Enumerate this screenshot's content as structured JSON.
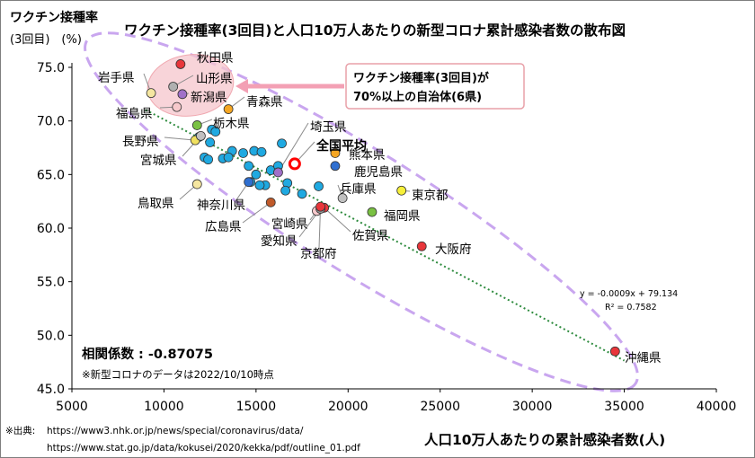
{
  "chart_data": {
    "type": "scatter",
    "title": "ワクチン接種率(3回目)と人口10万人あたりの新型コロナ累計感染者数の散布図",
    "ylabel_line1": "ワクチン接種率",
    "ylabel_line2": "(3回目)　(%)",
    "xlabel": "人口10万人あたりの累計感染者数(人)",
    "xlim": [
      5000,
      40000
    ],
    "ylim": [
      45.0,
      75.0
    ],
    "xticks": [
      "5000",
      "10000",
      "15000",
      "20000",
      "25000",
      "30000",
      "35000",
      "40000"
    ],
    "yticks": [
      "45.0",
      "50.0",
      "55.0",
      "60.0",
      "65.0",
      "70.0",
      "75.0"
    ],
    "trendline": {
      "equation": "y = -0.0009x + 79.134",
      "r2": "R² = 0.7582",
      "slope": -0.0009,
      "intercept": 79.134
    },
    "correlation": "相関係数 : -0.87075",
    "data_note": "※新型コロナのデータは2022/10/10時点",
    "callout": {
      "line1": "ワクチン接種率(3回目)が",
      "line2": "70%以上の自治体(6県)"
    },
    "source_label": "※出典:",
    "source_line1": "https://www3.nhk.or.jp/news/special/coronavirus/data/",
    "source_line2": "https://www.stat.go.jp/data/kokusei/2020/kekka/pdf/outline_01.pdf",
    "labeled_points": [
      {
        "name": "秋田県",
        "x": 10900,
        "y": 75.3,
        "color": "#e8363b"
      },
      {
        "name": "山形県",
        "x": 10500,
        "y": 73.2,
        "color": "#b0b0b0"
      },
      {
        "name": "岩手県",
        "x": 9300,
        "y": 72.6,
        "color": "#f5e6a0"
      },
      {
        "name": "新潟県",
        "x": 11000,
        "y": 72.5,
        "color": "#a070c8"
      },
      {
        "name": "福島県",
        "x": 10700,
        "y": 71.3,
        "color": "#f7c9cc"
      },
      {
        "name": "青森県",
        "x": 13500,
        "y": 71.1,
        "color": "#f5a623"
      },
      {
        "name": "栃木県",
        "x": 11800,
        "y": 69.6,
        "color": "#7ac143"
      },
      {
        "name": "長野県",
        "x": 11700,
        "y": 68.2,
        "color": "#f0e060"
      },
      {
        "name": "宮城県",
        "x": 12000,
        "y": 68.6,
        "color": "#c0c0c0"
      },
      {
        "name": "埼玉県",
        "x": 16200,
        "y": 65.2,
        "color": "#a070c8"
      },
      {
        "name": "全国平均",
        "x": 17100,
        "y": 66.0,
        "color": "#ffffff",
        "ring": true
      },
      {
        "name": "熊本県",
        "x": 19300,
        "y": 67.0,
        "color": "#f5a623"
      },
      {
        "name": "鹿児島県",
        "x": 19300,
        "y": 65.8,
        "color": "#2f6fd0"
      },
      {
        "name": "東京都",
        "x": 22900,
        "y": 63.5,
        "color": "#f7f03a"
      },
      {
        "name": "兵庫県",
        "x": 19700,
        "y": 62.8,
        "color": "#c0c0c0"
      },
      {
        "name": "福岡県",
        "x": 21300,
        "y": 61.5,
        "color": "#7ac143"
      },
      {
        "name": "佐賀県",
        "x": 18700,
        "y": 61.9,
        "color": "#e8363b"
      },
      {
        "name": "宮崎県",
        "x": 18300,
        "y": 61.6,
        "color": "#f7c9cc"
      },
      {
        "name": "愛知県",
        "x": 18500,
        "y": 61.8,
        "color": "#9a9a9a"
      },
      {
        "name": "京都府",
        "x": 18500,
        "y": 62.0,
        "color": "#e8363b"
      },
      {
        "name": "鳥取県",
        "x": 11800,
        "y": 64.1,
        "color": "#f5e6a0"
      },
      {
        "name": "神奈川県",
        "x": 14600,
        "y": 64.3,
        "color": "#2f6fd0"
      },
      {
        "name": "広島県",
        "x": 15800,
        "y": 62.4,
        "color": "#c05a2a"
      },
      {
        "name": "大阪府",
        "x": 24000,
        "y": 58.3,
        "color": "#e8363b"
      },
      {
        "name": "沖縄県",
        "x": 34500,
        "y": 48.5,
        "color": "#e8363b"
      }
    ],
    "other_points": [
      {
        "x": 11900,
        "y": 68.5
      },
      {
        "x": 12600,
        "y": 69.2
      },
      {
        "x": 12800,
        "y": 69.0
      },
      {
        "x": 12500,
        "y": 68.0
      },
      {
        "x": 12200,
        "y": 66.6
      },
      {
        "x": 12400,
        "y": 66.4
      },
      {
        "x": 13200,
        "y": 66.5
      },
      {
        "x": 13700,
        "y": 67.2
      },
      {
        "x": 14300,
        "y": 67.0
      },
      {
        "x": 14900,
        "y": 67.2
      },
      {
        "x": 15300,
        "y": 67.1
      },
      {
        "x": 16400,
        "y": 67.9
      },
      {
        "x": 14600,
        "y": 65.8
      },
      {
        "x": 15000,
        "y": 65.0
      },
      {
        "x": 14700,
        "y": 64.3
      },
      {
        "x": 15800,
        "y": 65.4
      },
      {
        "x": 16200,
        "y": 65.8
      },
      {
        "x": 16700,
        "y": 64.2
      },
      {
        "x": 16600,
        "y": 63.5
      },
      {
        "x": 15500,
        "y": 64.0
      },
      {
        "x": 17500,
        "y": 63.2
      },
      {
        "x": 18400,
        "y": 63.9
      },
      {
        "x": 13500,
        "y": 66.6
      },
      {
        "x": 15200,
        "y": 64.0
      }
    ]
  },
  "colors": {
    "default_point": "#1fa9e1",
    "trend": "#2e8b3e",
    "highlight_ellipse": "#f5c6cc",
    "dashed_ellipse": "#c9a6ef",
    "callout_border": "#e8a0a8",
    "accent_red": "#ff0000"
  }
}
